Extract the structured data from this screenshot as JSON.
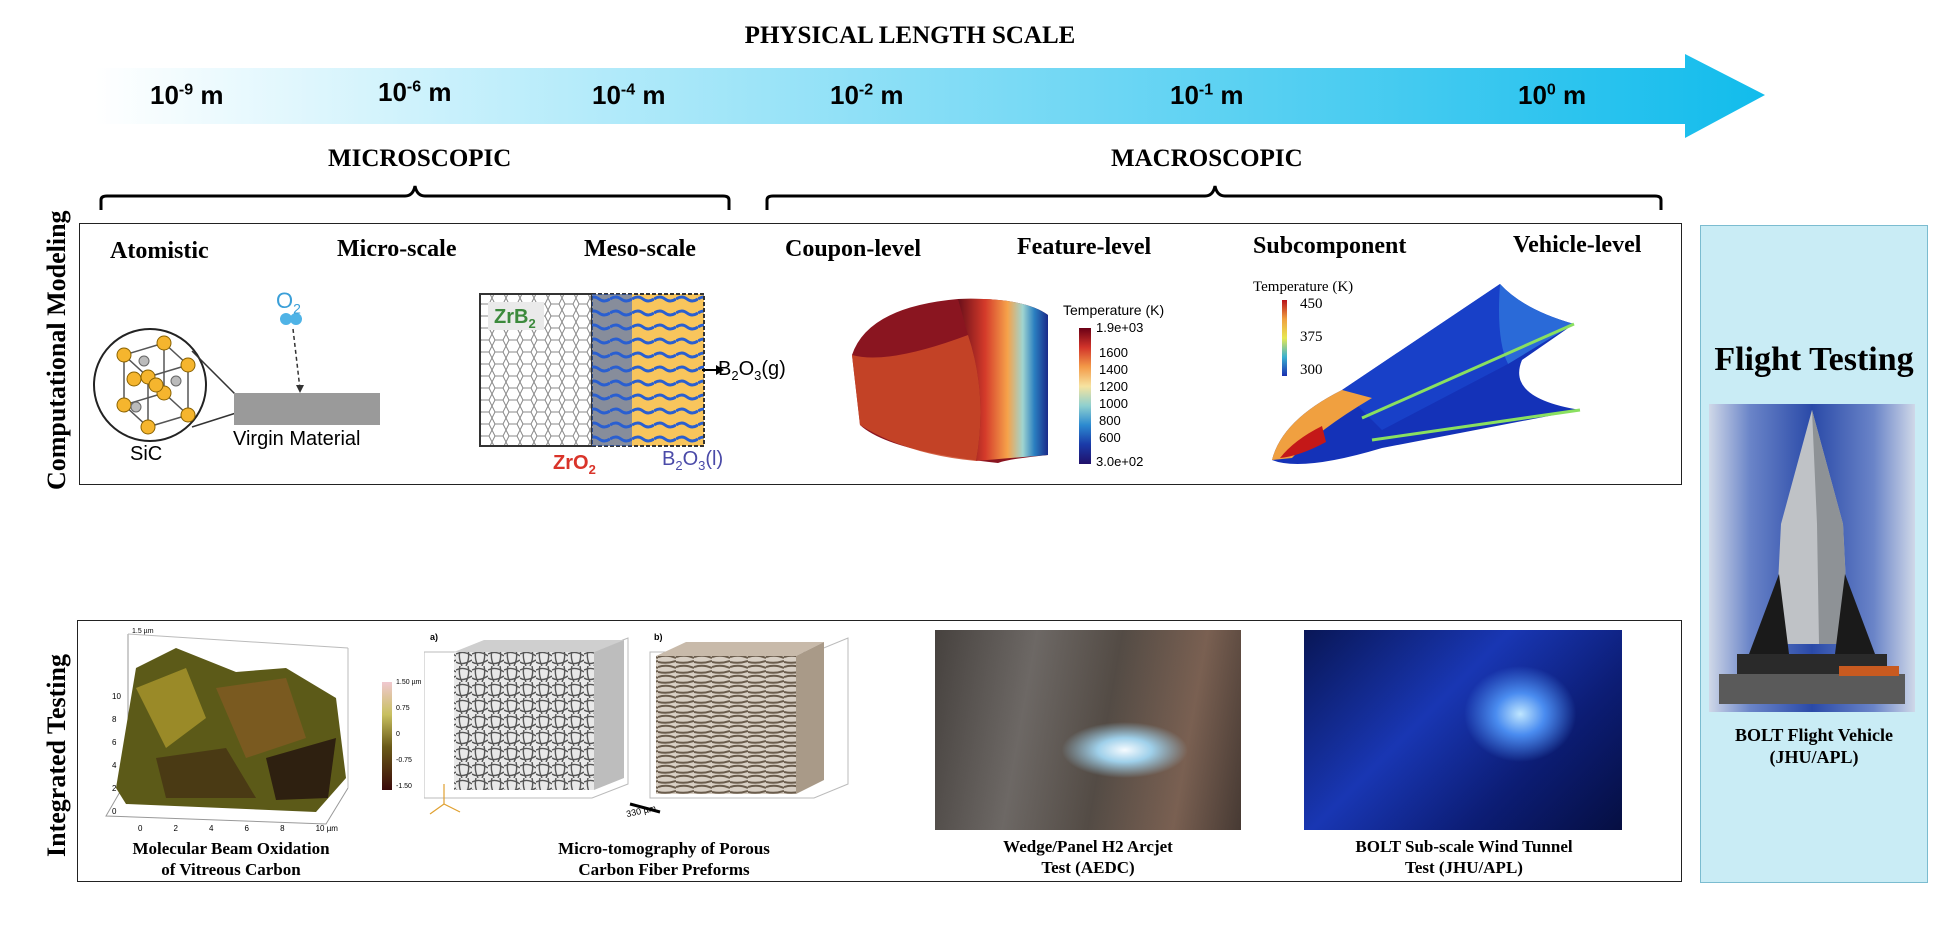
{
  "scale": {
    "title": "PHYSICAL LENGTH SCALE",
    "ticks": [
      {
        "base": "10",
        "exp": "-9",
        "unit": " m"
      },
      {
        "base": "10",
        "exp": "-6",
        "unit": " m"
      },
      {
        "base": "10",
        "exp": "-4",
        "unit": " m"
      },
      {
        "base": "10",
        "exp": "-2",
        "unit": " m"
      },
      {
        "base": "10",
        "exp": "-1",
        "unit": " m"
      },
      {
        "base": "10",
        "exp": "0",
        "unit": " m"
      }
    ],
    "arrow_color": "#1ec2ef"
  },
  "regions": {
    "micro": "MICROSCOPIC",
    "macro": "MACROSCOPIC"
  },
  "modeling": {
    "side_label": "Computational Modeling",
    "levels": [
      "Atomistic",
      "Micro-scale",
      "Meso-scale",
      "Coupon-level",
      "Feature-level",
      "Subcomponent",
      "Vehicle-level"
    ],
    "atomistic": {
      "o2": "O",
      "o2_sub": "2",
      "sic": "SiC",
      "virgin": "Virgin Material"
    },
    "meso": {
      "zrb2": "ZrB",
      "zrb2_sub": "2",
      "b2o3g_a": "B",
      "b2o3g_b": "O",
      "b2o3g_c": "(g)",
      "zro2": "ZrO",
      "zro2_sub": "2",
      "b2o3l_a": "B",
      "b2o3l_b": "O",
      "b2o3l_c": "(l)",
      "sub2": "2",
      "sub3": "3"
    },
    "coupon_legend": {
      "title": "Temperature (K)",
      "max": "1.9e+03",
      "labels": [
        "1600",
        "1400",
        "1200",
        "1000",
        "800",
        "600"
      ],
      "min": "3.0e+02"
    },
    "sub_legend": {
      "title": "Temperature (K)",
      "labels": [
        "450",
        "375",
        "300"
      ]
    }
  },
  "testing": {
    "side_label": "Integrated Testing",
    "mbo_caption": [
      "Molecular Beam Oxidation",
      "of Vitreous Carbon"
    ],
    "mbo_axes": {
      "z_top": "1.5 µm",
      "x_ticks": [
        "0",
        "2",
        "4",
        "6",
        "8",
        "10 µm"
      ],
      "y_ticks": [
        "0",
        "2",
        "4",
        "6",
        "8",
        "10"
      ],
      "cbar": [
        "1.50 µm",
        "0.75",
        "0",
        "-0.75",
        "-1.50"
      ]
    },
    "ct_caption": [
      "Micro-tomography of Porous",
      "Carbon Fiber Preforms"
    ],
    "ct_labels": {
      "a": "a)",
      "b": "b)",
      "scale": "330 µm"
    },
    "arcjet_caption": [
      "Wedge/Panel H2 Arcjet",
      "Test (AEDC)"
    ],
    "wind_caption": [
      "BOLT Sub-scale Wind Tunnel",
      "Test (JHU/APL)"
    ]
  },
  "flight": {
    "title": "Flight Testing",
    "caption": [
      "BOLT Flight Vehicle",
      "(JHU/APL)"
    ],
    "bg_color": "#c9ecf5"
  }
}
